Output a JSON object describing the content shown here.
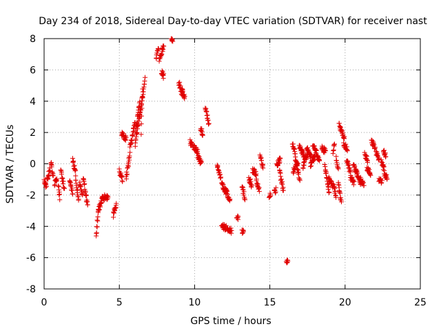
{
  "chart_data": {
    "type": "scatter",
    "title": "Day 234 of 2018, Sidereal Day-to-day VTEC variation (SDTVAR) for receiver nast",
    "xlabel": "GPS time / hours",
    "ylabel": "SDTVAR / TECUs",
    "xlim": [
      0,
      25
    ],
    "ylim": [
      -8,
      8
    ],
    "xticks": [
      0,
      5,
      10,
      15,
      20,
      25
    ],
    "yticks": [
      -8,
      -6,
      -4,
      -2,
      0,
      2,
      4,
      6,
      8
    ],
    "xtick_labels": [
      "0",
      "5",
      "10",
      "15",
      "20",
      "25"
    ],
    "ytick_labels": [
      "-8",
      "-6",
      "-4",
      "-2",
      "0",
      "2",
      "4",
      "6",
      "8"
    ],
    "grid": true,
    "marker": "+",
    "colors": {
      "series": "#e00000",
      "grid": "#a0a0a0",
      "axis": "#000000"
    },
    "series": [
      {
        "name": "SDTVAR",
        "segments": [
          [
            0.0,
            -1.1,
            0.15,
            -1.5
          ],
          [
            0.2,
            -1.0,
            0.4,
            -0.3
          ],
          [
            0.45,
            0.2,
            0.6,
            -0.8
          ],
          [
            0.7,
            -1.3,
            0.85,
            -0.9
          ],
          [
            0.95,
            -1.5,
            1.05,
            -2.2
          ],
          [
            1.1,
            -0.4,
            1.35,
            -1.6
          ],
          [
            1.7,
            -1.1,
            1.9,
            -1.9
          ],
          [
            1.9,
            0.2,
            2.1,
            -0.6
          ],
          [
            2.1,
            -1.0,
            2.3,
            -2.4
          ],
          [
            2.35,
            -1.2,
            2.55,
            -2.0
          ],
          [
            2.6,
            -0.9,
            2.9,
            -2.8
          ],
          [
            3.45,
            -4.6,
            3.6,
            -3.0
          ],
          [
            3.6,
            -3.0,
            3.85,
            -2.3
          ],
          [
            3.85,
            -2.2,
            4.25,
            -2.1
          ],
          [
            4.6,
            -3.3,
            4.8,
            -2.6
          ],
          [
            5.0,
            -0.5,
            5.2,
            -1.0
          ],
          [
            5.15,
            1.9,
            5.45,
            1.6
          ],
          [
            5.45,
            -0.9,
            5.7,
            0.6
          ],
          [
            5.7,
            1.0,
            6.05,
            2.6
          ],
          [
            6.05,
            1.2,
            6.4,
            3.5
          ],
          [
            6.1,
            2.2,
            6.35,
            4.0
          ],
          [
            6.35,
            3.0,
            6.7,
            5.4
          ],
          [
            6.45,
            1.9,
            6.55,
            4.9
          ],
          [
            7.45,
            6.8,
            7.6,
            7.4
          ],
          [
            7.65,
            6.7,
            7.95,
            7.5
          ],
          [
            7.8,
            5.9,
            7.95,
            5.6
          ],
          [
            8.45,
            8.0,
            8.55,
            7.9
          ],
          [
            8.95,
            5.2,
            9.2,
            4.4
          ],
          [
            9.15,
            4.7,
            9.35,
            4.3
          ],
          [
            9.7,
            1.4,
            9.85,
            1.1
          ],
          [
            9.9,
            1.1,
            10.2,
            0.8
          ],
          [
            10.2,
            0.5,
            10.45,
            0.0
          ],
          [
            10.4,
            2.3,
            10.55,
            1.9
          ],
          [
            10.7,
            3.6,
            10.95,
            2.6
          ],
          [
            11.5,
            -0.1,
            11.75,
            -1.0
          ],
          [
            11.8,
            -1.3,
            12.1,
            -1.8
          ],
          [
            12.05,
            -1.6,
            12.35,
            -2.4
          ],
          [
            11.8,
            -4.0,
            12.1,
            -4.1
          ],
          [
            12.15,
            -4.1,
            12.45,
            -4.3
          ],
          [
            12.8,
            -3.4,
            12.9,
            -3.5
          ],
          [
            13.15,
            -4.3,
            13.25,
            -4.3
          ],
          [
            13.15,
            -1.4,
            13.35,
            -2.2
          ],
          [
            13.6,
            -0.9,
            13.8,
            -1.4
          ],
          [
            13.85,
            -0.4,
            14.1,
            -0.6
          ],
          [
            14.1,
            -1.1,
            14.3,
            -1.6
          ],
          [
            14.35,
            0.7,
            14.55,
            -0.3
          ],
          [
            14.95,
            -2.0,
            15.05,
            -2.0
          ],
          [
            15.3,
            -1.8,
            15.4,
            -1.7
          ],
          [
            15.45,
            -0.1,
            15.7,
            0.3
          ],
          [
            15.65,
            -0.5,
            15.9,
            -1.7
          ],
          [
            16.1,
            -6.3,
            16.2,
            -6.3
          ],
          [
            16.5,
            1.3,
            16.7,
            0.6
          ],
          [
            16.55,
            -0.5,
            16.85,
            0.2
          ],
          [
            16.7,
            0.4,
            17.0,
            -1.1
          ],
          [
            16.95,
            1.1,
            17.3,
            0.5
          ],
          [
            17.2,
            -0.2,
            17.5,
            0.7
          ],
          [
            17.45,
            1.0,
            17.75,
            0.4
          ],
          [
            17.7,
            -0.1,
            18.0,
            0.5
          ],
          [
            17.85,
            1.1,
            18.1,
            0.8
          ],
          [
            18.1,
            0.6,
            18.3,
            0.2
          ],
          [
            18.45,
            1.0,
            18.7,
            0.8
          ],
          [
            18.65,
            -0.2,
            18.95,
            -1.9
          ],
          [
            18.9,
            -1.0,
            19.2,
            -1.4
          ],
          [
            19.2,
            0.8,
            19.3,
            1.3
          ],
          [
            19.2,
            -1.3,
            19.4,
            -2.0
          ],
          [
            19.4,
            0.3,
            19.55,
            -0.3
          ],
          [
            19.55,
            -1.1,
            19.75,
            -2.6
          ],
          [
            19.6,
            2.5,
            19.95,
            1.7
          ],
          [
            19.9,
            1.3,
            20.15,
            0.9
          ],
          [
            20.1,
            0.3,
            20.35,
            -0.6
          ],
          [
            20.35,
            -0.8,
            20.6,
            -1.3
          ],
          [
            20.55,
            0.0,
            20.8,
            -0.7
          ],
          [
            20.8,
            -0.6,
            21.05,
            -1.2
          ],
          [
            21.0,
            -1.0,
            21.25,
            -1.3
          ],
          [
            21.3,
            0.6,
            21.5,
            0.2
          ],
          [
            21.45,
            -0.3,
            21.7,
            -0.6
          ],
          [
            21.75,
            1.5,
            22.0,
            1.0
          ],
          [
            22.05,
            0.7,
            22.25,
            0.3
          ],
          [
            22.25,
            -1.0,
            22.45,
            -1.2
          ],
          [
            22.4,
            0.1,
            22.6,
            -0.4
          ],
          [
            22.55,
            0.9,
            22.7,
            0.5
          ],
          [
            22.6,
            -0.7,
            22.8,
            -0.9
          ]
        ]
      }
    ]
  }
}
